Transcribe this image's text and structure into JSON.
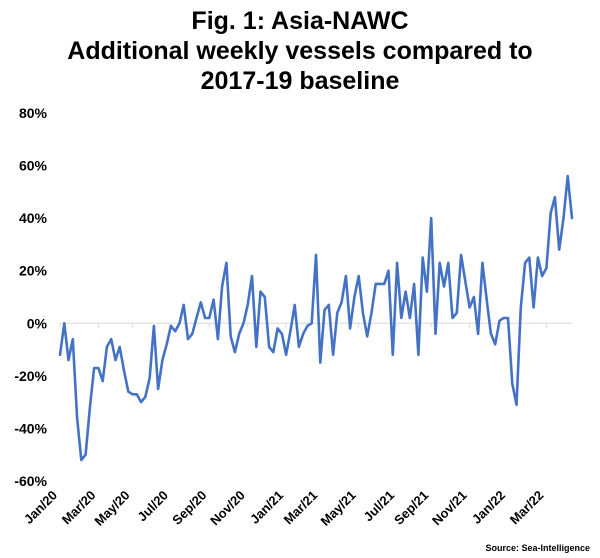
{
  "chart_data": {
    "type": "line",
    "title_lines": [
      "Fig. 1: Asia-NAWC",
      "Additional weekly vessels compared to",
      "2017-19 baseline"
    ],
    "xlabel": "",
    "ylabel": "",
    "ylim": [
      -60,
      80
    ],
    "y_ticks": [
      -60,
      -40,
      -20,
      0,
      20,
      40,
      60,
      80
    ],
    "y_tick_labels": [
      "-60%",
      "-40%",
      "-20%",
      "0%",
      "20%",
      "40%",
      "60%",
      "80%"
    ],
    "x_ticks": [
      {
        "label": "Jan/20",
        "week": 0
      },
      {
        "label": "Mar/20",
        "week": 9
      },
      {
        "label": "May/20",
        "week": 17
      },
      {
        "label": "Jul/20",
        "week": 26
      },
      {
        "label": "Sep/20",
        "week": 35
      },
      {
        "label": "Nov/20",
        "week": 44
      },
      {
        "label": "Jan/21",
        "week": 53
      },
      {
        "label": "Mar/21",
        "week": 61
      },
      {
        "label": "May/21",
        "week": 70
      },
      {
        "label": "Jul/21",
        "week": 79
      },
      {
        "label": "Sep/21",
        "week": 87
      },
      {
        "label": "Nov/21",
        "week": 96
      },
      {
        "label": "Jan/22",
        "week": 105
      },
      {
        "label": "Mar/22",
        "week": 114
      }
    ],
    "grid": false,
    "legend": "none",
    "series": [
      {
        "color": "#4472c4",
        "values": [
          -12,
          0,
          -14,
          -6,
          -36,
          -52,
          -50,
          -32,
          -17,
          -17,
          -22,
          -9,
          -6,
          -14,
          -9,
          -18,
          -26,
          -27,
          -27,
          -30,
          -28,
          -21,
          -1,
          -25,
          -14,
          -8,
          -1,
          -3,
          0,
          7,
          -6,
          -4,
          2,
          8,
          2,
          2,
          9,
          -6,
          14,
          23,
          -5,
          -11,
          -4,
          0,
          7,
          18,
          -9,
          12,
          10,
          -9,
          -11,
          -2,
          -4,
          -12,
          -3,
          7,
          -9,
          -4,
          -1,
          0,
          26,
          -15,
          5,
          7,
          -12,
          4,
          8,
          18,
          -2,
          10,
          18,
          4,
          -5,
          4,
          15,
          15,
          15,
          20,
          -12,
          23,
          2,
          12,
          2,
          15,
          -12,
          25,
          12,
          40,
          -4,
          23,
          14,
          23,
          2,
          4,
          26,
          16,
          6,
          10,
          -4,
          23,
          9,
          -4,
          -8,
          1,
          2,
          2,
          -23,
          -31,
          6,
          23,
          25,
          6,
          25,
          18,
          21,
          42,
          48,
          28,
          40,
          56,
          40
        ]
      }
    ],
    "source": "Source: Sea-Intelligence"
  }
}
